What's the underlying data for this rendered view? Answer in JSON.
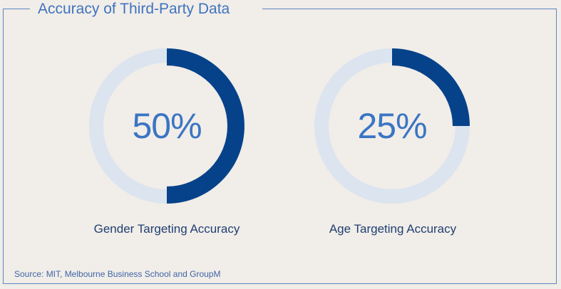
{
  "title": "Accuracy of Third-Party Data",
  "chart_data": {
    "type": "pie",
    "variant": "donut",
    "title": "Accuracy of Third-Party Data",
    "charts": [
      {
        "label": "Gender Targeting Accuracy",
        "value": 50,
        "display": "50%"
      },
      {
        "label": "Age Targeting Accuracy",
        "value": 25,
        "display": "25%"
      }
    ],
    "max": 100
  },
  "source": "Source: MIT, Melbourne Business School and GroupM",
  "colors": {
    "filled": "#06428a",
    "track": "#dbe4ef",
    "background": "#f1ede8",
    "accent": "#3f74c0"
  }
}
